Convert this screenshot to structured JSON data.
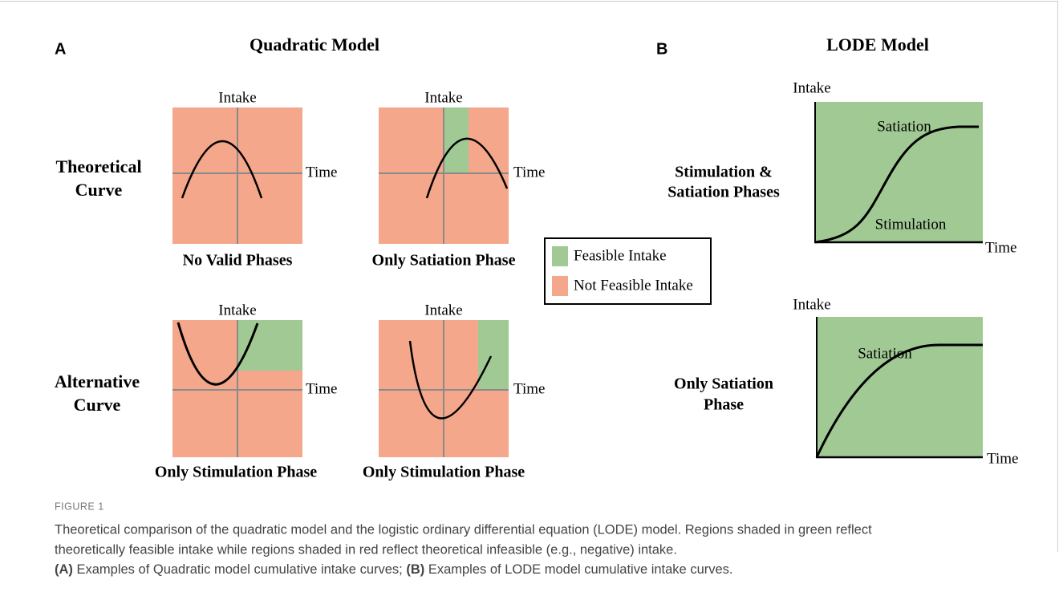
{
  "figure": {
    "panel_a": {
      "letter": "A",
      "title": "Quadratic Model",
      "rows": [
        [
          "Theoretical",
          "Curve"
        ],
        [
          "Alternative",
          "Curve"
        ]
      ],
      "plots": [
        {
          "y_label": "Intake",
          "x_label": "Time",
          "caption": "No Valid Phases"
        },
        {
          "y_label": "Intake",
          "x_label": "Time",
          "caption": "Only Satiation Phase"
        },
        {
          "y_label": "Intake",
          "x_label": "Time",
          "caption": "Only Stimulation Phase"
        },
        {
          "y_label": "Intake",
          "x_label": "Time",
          "caption": "Only Stimulation Phase"
        }
      ]
    },
    "legend": [
      "Feasible Intake",
      "Not Feasible Intake"
    ],
    "panel_b": {
      "letter": "B",
      "title": "LODE Model",
      "rows": [
        [
          "Stimulation &",
          "Satiation Phases"
        ],
        [
          "Only Satiation",
          "Phase"
        ]
      ],
      "plots": [
        {
          "y_label": "Intake",
          "x_label": "Time",
          "annotations": [
            "Satiation",
            "Stimulation"
          ]
        },
        {
          "y_label": "Intake",
          "x_label": "Time",
          "annotations": [
            "Satiation"
          ]
        }
      ]
    },
    "label": "FIGURE 1",
    "caption": [
      "Theoretical comparison of the quadratic model and the logistic ordinary differential equation (LODE) model. Regions shaded in green reflect",
      "theoretically feasible intake while regions shaded in red reflect theoretical infeasible (e.g., negative) intake.",
      "(A)",
      " Examples of Quadratic model cumulative intake curves; ",
      "(B)",
      " Examples of LODE model cumulative intake curves."
    ]
  }
}
